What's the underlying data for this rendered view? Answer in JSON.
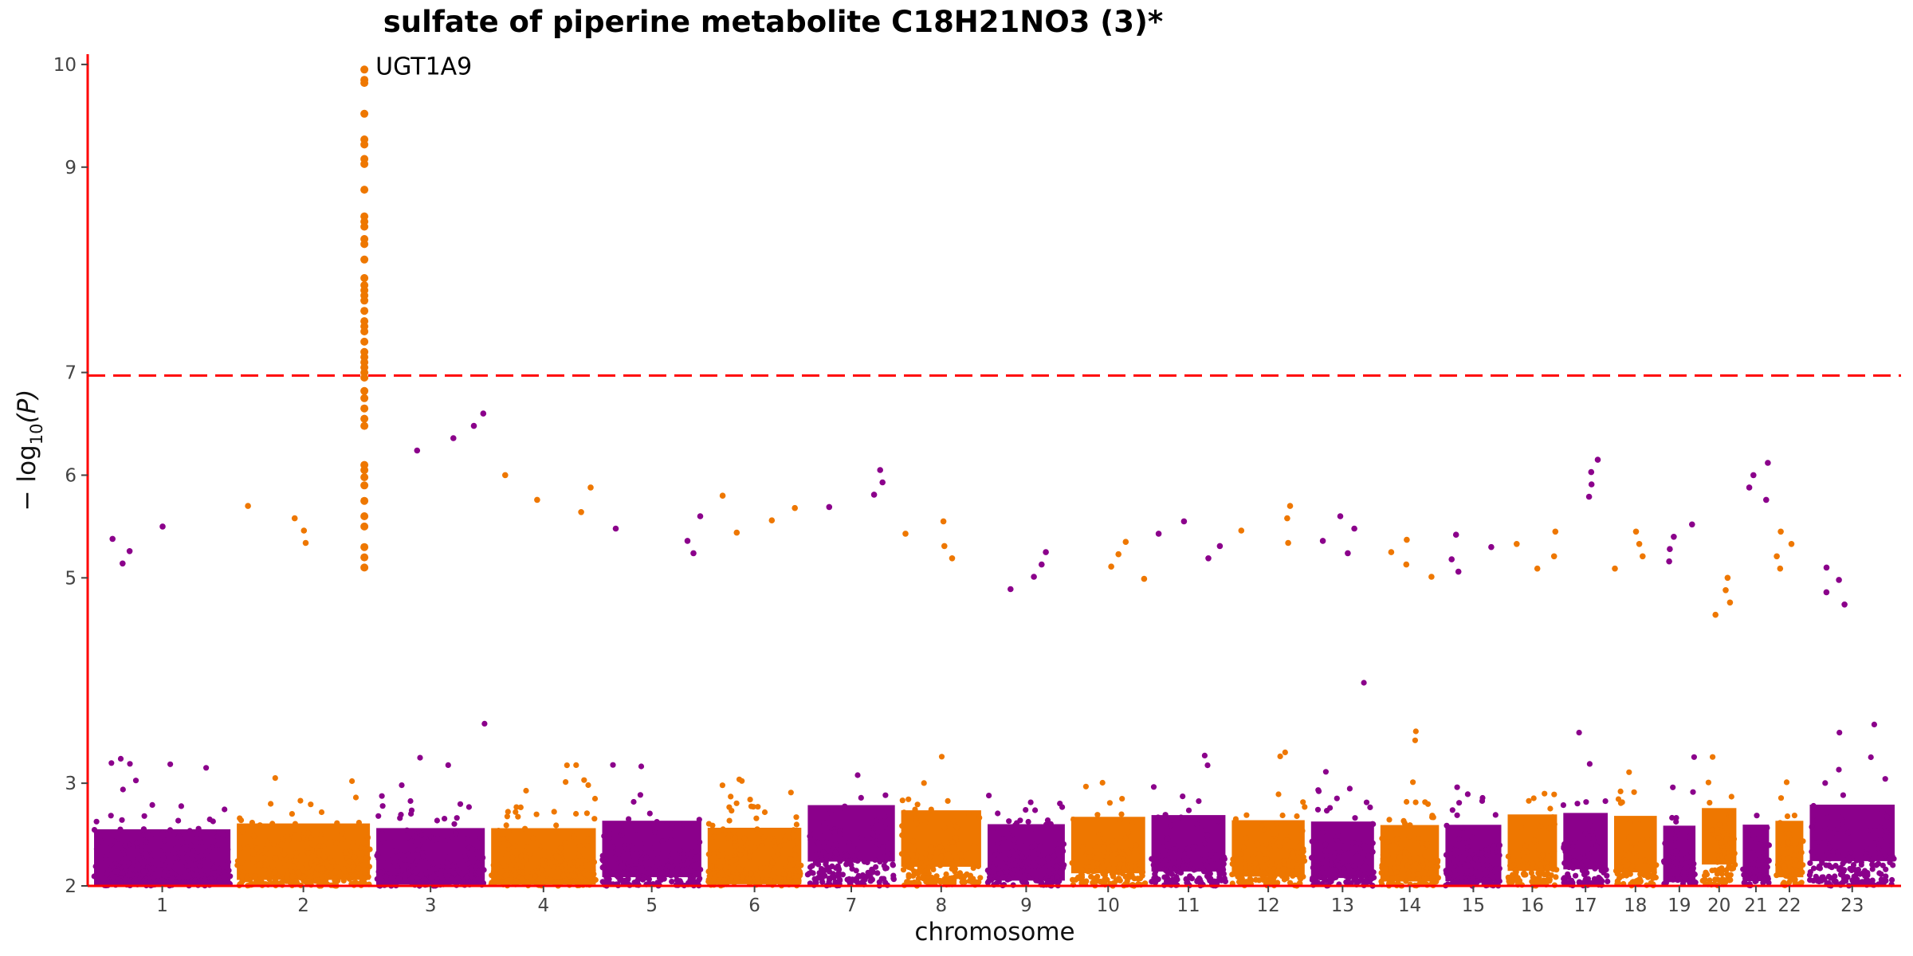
{
  "chart_data": {
    "type": "scatter",
    "title": "sulfate of piperine metabolite C18H21NO3 (3)*",
    "xlabel": "chromosome",
    "ylabel_main": "− log",
    "ylabel_sub": "10",
    "ylabel_tail": "(P)",
    "ylim": [
      2,
      10.1
    ],
    "y_ticks": [
      "2",
      "3",
      "5",
      "6",
      "7",
      "9",
      "10"
    ],
    "y_tick_values": [
      2,
      3,
      5,
      6,
      7,
      9,
      10
    ],
    "significance_threshold": 6.97,
    "colors": {
      "odd": "#8B008B",
      "even": "#EE7700",
      "axis": "#FF0000",
      "threshold": "#FF0000"
    },
    "chromosomes": [
      {
        "label": "1",
        "size": 249,
        "max_p": 5.5
      },
      {
        "label": "2",
        "size": 243,
        "max_p": 5.7
      },
      {
        "label": "3",
        "size": 198,
        "max_p": 6.6
      },
      {
        "label": "4",
        "size": 191,
        "max_p": 6.0
      },
      {
        "label": "5",
        "size": 181,
        "max_p": 5.6
      },
      {
        "label": "6",
        "size": 171,
        "max_p": 5.8
      },
      {
        "label": "7",
        "size": 159,
        "max_p": 6.05
      },
      {
        "label": "8",
        "size": 146,
        "max_p": 5.55
      },
      {
        "label": "9",
        "size": 141,
        "max_p": 5.25
      },
      {
        "label": "10",
        "size": 135,
        "max_p": 5.35
      },
      {
        "label": "11",
        "size": 135,
        "max_p": 5.55
      },
      {
        "label": "12",
        "size": 133,
        "max_p": 5.7
      },
      {
        "label": "13",
        "size": 115,
        "max_p": 5.6
      },
      {
        "label": "14",
        "size": 107,
        "max_p": 5.37
      },
      {
        "label": "15",
        "size": 102,
        "max_p": 5.42
      },
      {
        "label": "16",
        "size": 90,
        "max_p": 5.45
      },
      {
        "label": "17",
        "size": 81,
        "max_p": 6.15
      },
      {
        "label": "18",
        "size": 78,
        "max_p": 5.45
      },
      {
        "label": "19",
        "size": 59,
        "max_p": 5.52
      },
      {
        "label": "20",
        "size": 63,
        "max_p": 5.0
      },
      {
        "label": "21",
        "size": 48,
        "max_p": 6.12
      },
      {
        "label": "22",
        "size": 51,
        "max_p": 5.45
      },
      {
        "label": "23",
        "size": 155,
        "max_p": 5.1
      }
    ],
    "peak": {
      "chromosome": "2",
      "label": "UGT1A9",
      "max_p": 9.95,
      "points": [
        9.95,
        9.85,
        9.82,
        9.52,
        9.27,
        9.22,
        9.08,
        9.03,
        8.78,
        8.52,
        8.47,
        8.42,
        8.3,
        8.25,
        8.1,
        7.92,
        7.85,
        7.8,
        7.75,
        7.7,
        7.6,
        7.5,
        7.45,
        7.4,
        7.3,
        7.2,
        7.15,
        7.1,
        7.05,
        7.0,
        6.95,
        6.82,
        6.75,
        6.65,
        6.55,
        6.48,
        6.1,
        6.05,
        5.98,
        5.9,
        5.75,
        5.6,
        5.5,
        5.3,
        5.2,
        5.1
      ]
    }
  }
}
